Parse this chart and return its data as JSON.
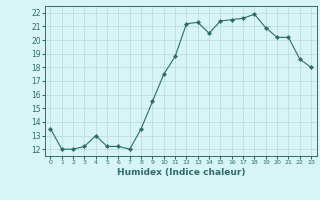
{
  "x": [
    0,
    1,
    2,
    3,
    4,
    5,
    6,
    7,
    8,
    9,
    10,
    11,
    12,
    13,
    14,
    15,
    16,
    17,
    18,
    19,
    20,
    21,
    22,
    23
  ],
  "y": [
    13.5,
    12.0,
    12.0,
    12.2,
    13.0,
    12.2,
    12.2,
    12.0,
    13.5,
    15.5,
    17.5,
    18.8,
    21.2,
    21.3,
    20.5,
    21.4,
    21.5,
    21.6,
    21.9,
    20.9,
    20.2,
    20.2,
    18.6,
    18.0
  ],
  "line_color": "#2e6b6b",
  "marker": "D",
  "marker_size": 2.0,
  "bg_color": "#d8f5f5",
  "grid_color": "#b8d8d8",
  "xlabel": "Humidex (Indice chaleur)",
  "xlim": [
    -0.5,
    23.5
  ],
  "ylim": [
    11.5,
    22.5
  ],
  "yticks": [
    12,
    13,
    14,
    15,
    16,
    17,
    18,
    19,
    20,
    21,
    22
  ],
  "xticks": [
    0,
    1,
    2,
    3,
    4,
    5,
    6,
    7,
    8,
    9,
    10,
    11,
    12,
    13,
    14,
    15,
    16,
    17,
    18,
    19,
    20,
    21,
    22,
    23
  ],
  "xtick_labels": [
    "0",
    "1",
    "2",
    "3",
    "4",
    "5",
    "6",
    "7",
    "8",
    "9",
    "10",
    "11",
    "12",
    "13",
    "14",
    "15",
    "16",
    "17",
    "18",
    "19",
    "20",
    "21",
    "22",
    "23"
  ]
}
